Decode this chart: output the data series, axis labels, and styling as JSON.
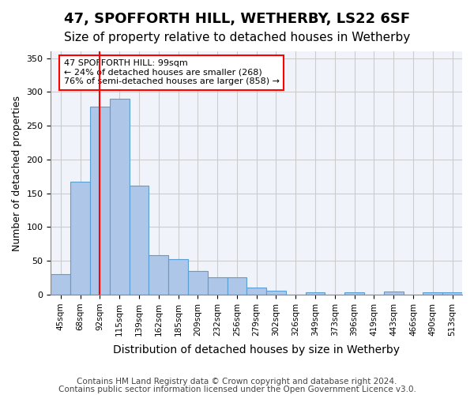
{
  "title1": "47, SPOFFORTH HILL, WETHERBY, LS22 6SF",
  "title2": "Size of property relative to detached houses in Wetherby",
  "xlabel": "Distribution of detached houses by size in Wetherby",
  "ylabel": "Number of detached properties",
  "footer1": "Contains HM Land Registry data © Crown copyright and database right 2024.",
  "footer2": "Contains public sector information licensed under the Open Government Licence v3.0.",
  "categories": [
    "45sqm",
    "68sqm",
    "92sqm",
    "115sqm",
    "139sqm",
    "162sqm",
    "185sqm",
    "209sqm",
    "232sqm",
    "256sqm",
    "279sqm",
    "302sqm",
    "326sqm",
    "349sqm",
    "373sqm",
    "396sqm",
    "419sqm",
    "443sqm",
    "466sqm",
    "490sqm",
    "513sqm"
  ],
  "values": [
    30,
    167,
    278,
    290,
    161,
    59,
    53,
    35,
    26,
    26,
    10,
    6,
    0,
    3,
    0,
    3,
    0,
    5,
    0,
    4,
    4
  ],
  "bar_color": "#aec6e8",
  "bar_edge_color": "#5a9fd4",
  "red_line_index": 2,
  "annotation_text": "47 SPOFFORTH HILL: 99sqm\n← 24% of detached houses are smaller (268)\n76% of semi-detached houses are larger (858) →",
  "annotation_box_color": "white",
  "annotation_box_edge_color": "red",
  "red_line_color": "red",
  "ylim": [
    0,
    360
  ],
  "yticks": [
    0,
    50,
    100,
    150,
    200,
    250,
    300,
    350
  ],
  "grid_color": "#cccccc",
  "bg_color": "#f0f4fa",
  "title1_fontsize": 13,
  "title2_fontsize": 11,
  "xlabel_fontsize": 10,
  "ylabel_fontsize": 9,
  "footer_fontsize": 7.5
}
